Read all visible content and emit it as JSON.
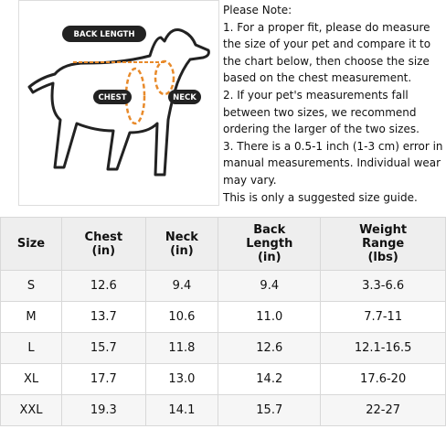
{
  "diagram": {
    "labels": {
      "back_length": "BACK LENGTH",
      "chest": "CHEST",
      "neck": "NECK"
    }
  },
  "note": {
    "title": "Please Note:",
    "paragraphs": [
      "1. For a proper fit, please do measure the size of your pet and compare it to the chart below, then choose the size based on the chest measurement.",
      "2. If your pet's measurements fall between two sizes, we recommend ordering the larger of the two sizes.",
      "3. There is a 0.5-1 inch (1-3 cm) error in manual measurements. Individual wear may vary.",
      "This is only a suggested size guide."
    ]
  },
  "table": {
    "header": [
      "Size",
      "Chest\n(in)",
      "Neck\n(in)",
      "Back\nLength\n(in)",
      "Weight\nRange\n(lbs)"
    ],
    "rows": [
      [
        "S",
        "12.6",
        "9.4",
        "9.4",
        "3.3-6.6"
      ],
      [
        "M",
        "13.7",
        "10.6",
        "11.0",
        "7.7-11"
      ],
      [
        "L",
        "15.7",
        "11.8",
        "12.6",
        "12.1-16.5"
      ],
      [
        "XL",
        "17.7",
        "13.0",
        "14.2",
        "17.6-20"
      ],
      [
        "XXL",
        "19.3",
        "14.1",
        "15.7",
        "22-27"
      ]
    ]
  }
}
